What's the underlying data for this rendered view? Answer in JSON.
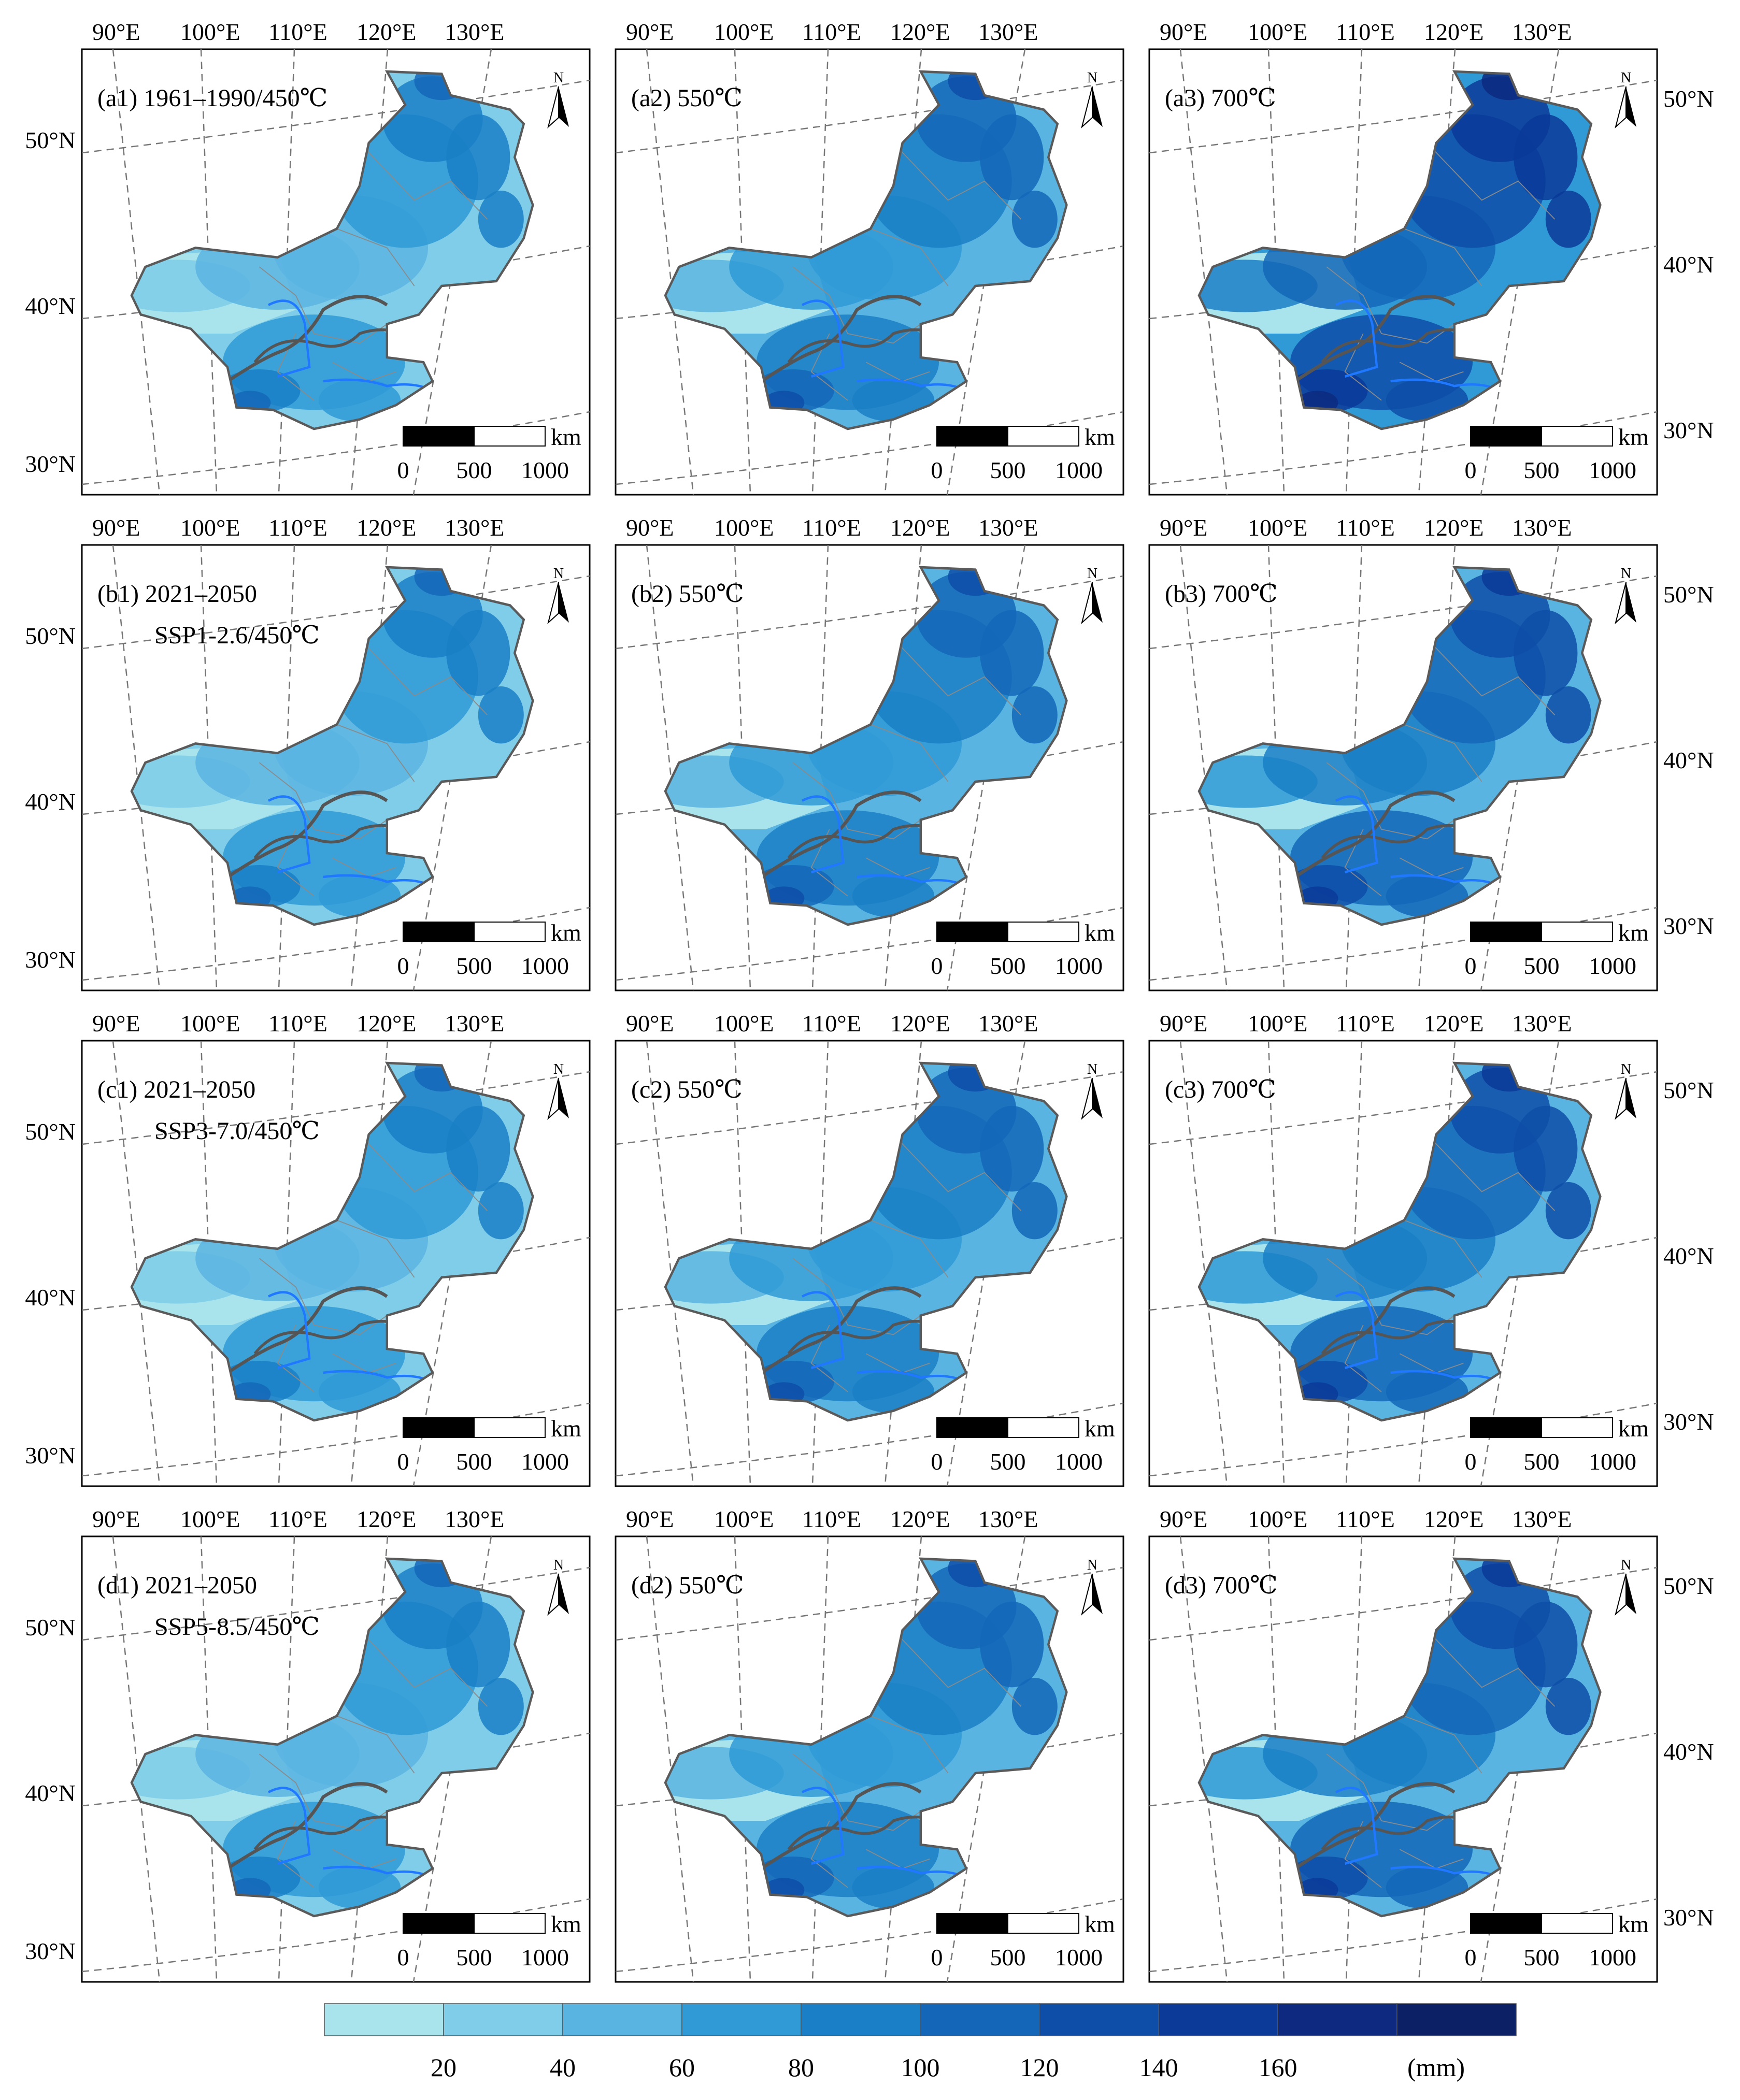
{
  "figure": {
    "panels": [
      {
        "id": "a1",
        "title_line1": "(a1) 1961–1990/450℃",
        "title_line2": "",
        "intensity": 0.35
      },
      {
        "id": "a2",
        "title_line1": "(a2) 550℃",
        "title_line2": "",
        "intensity": 0.55
      },
      {
        "id": "a3",
        "title_line1": "(a3) 700℃",
        "title_line2": "",
        "intensity": 0.85
      },
      {
        "id": "b1",
        "title_line1": "(b1) 2021–2050",
        "title_line2": "SSP1-2.6/450℃",
        "intensity": 0.35
      },
      {
        "id": "b2",
        "title_line1": "(b2) 550℃",
        "title_line2": "",
        "intensity": 0.55
      },
      {
        "id": "b3",
        "title_line1": "(b3) 700℃",
        "title_line2": "",
        "intensity": 0.8
      },
      {
        "id": "c1",
        "title_line1": "(c1) 2021–2050",
        "title_line2": "SSP3-7.0/450℃",
        "intensity": 0.38
      },
      {
        "id": "c2",
        "title_line1": "(c2) 550℃",
        "title_line2": "",
        "intensity": 0.55
      },
      {
        "id": "c3",
        "title_line1": "(c3) 700℃",
        "title_line2": "",
        "intensity": 0.8
      },
      {
        "id": "d1",
        "title_line1": "(d1) 2021–2050",
        "title_line2": "SSP5-8.5/450℃",
        "intensity": 0.38
      },
      {
        "id": "d2",
        "title_line1": "(d2) 550℃",
        "title_line2": "",
        "intensity": 0.55
      },
      {
        "id": "d3",
        "title_line1": "(d3) 700℃",
        "title_line2": "",
        "intensity": 0.8
      }
    ],
    "lon_labels": [
      "90°E",
      "100°E",
      "110°E",
      "120°E",
      "130°E"
    ],
    "lat_labels": [
      "50°N",
      "40°N",
      "30°N"
    ],
    "north_arrow": "N",
    "scale_bar": {
      "unit": "km",
      "ticks": [
        "0",
        "500",
        "1000"
      ]
    },
    "colorbar": {
      "colors": [
        "#a9e4ec",
        "#7fcde9",
        "#5ab4e2",
        "#2f9ad6",
        "#1a7fc6",
        "#1467b8",
        "#0e4ea8",
        "#0b3a99",
        "#0d2a80",
        "#0c2066"
      ],
      "tick_labels": [
        "20",
        "40",
        "60",
        "80",
        "100",
        "120",
        "140",
        "160"
      ],
      "unit": "(mm)"
    },
    "colors": {
      "border": "#5a5a5a",
      "river_blue": "#1f78ff",
      "river_gray": "#555555",
      "graticule": "#777777"
    }
  }
}
